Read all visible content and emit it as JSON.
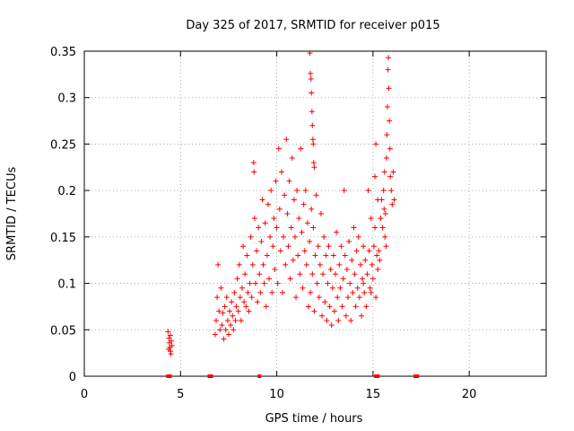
{
  "chart_data": {
    "type": "scatter",
    "title": "Day 325 of 2017, SRMTID for receiver p015",
    "xlabel": "GPS time / hours",
    "ylabel": "SRMTID / TECUs",
    "xlim": [
      0,
      24
    ],
    "ylim": [
      0,
      0.35
    ],
    "xticks": [
      0,
      5,
      10,
      15,
      20
    ],
    "xtick_labels": [
      "0",
      "5",
      "10",
      "15",
      "20"
    ],
    "yticks": [
      0,
      0.05,
      0.1,
      0.15,
      0.2,
      0.25,
      0.3,
      0.35
    ],
    "ytick_labels": [
      "0",
      "0.05",
      "0.1",
      "0.15",
      "0.2",
      "0.25",
      "0.3",
      "0.35"
    ],
    "grid": true,
    "marker": "+",
    "color": "#ff0000",
    "series": [
      {
        "name": "SRMTID",
        "points": [
          [
            4.35,
            0.048
          ],
          [
            4.4,
            0.041
          ],
          [
            4.42,
            0.036
          ],
          [
            4.45,
            0.031
          ],
          [
            4.48,
            0.027
          ],
          [
            4.5,
            0.024
          ],
          [
            4.52,
            0.038
          ],
          [
            4.55,
            0.033
          ],
          [
            4.38,
            0.029
          ],
          [
            4.47,
            0.044
          ],
          [
            6.8,
            0.045
          ],
          [
            6.85,
            0.06
          ],
          [
            6.9,
            0.085
          ],
          [
            6.95,
            0.12
          ],
          [
            7.0,
            0.07
          ],
          [
            7.05,
            0.05
          ],
          [
            7.1,
            0.095
          ],
          [
            7.15,
            0.055
          ],
          [
            7.2,
            0.068
          ],
          [
            7.25,
            0.04
          ],
          [
            7.3,
            0.075
          ],
          [
            7.35,
            0.05
          ],
          [
            7.4,
            0.085
          ],
          [
            7.45,
            0.06
          ],
          [
            7.5,
            0.045
          ],
          [
            7.55,
            0.07
          ],
          [
            7.6,
            0.055
          ],
          [
            7.65,
            0.08
          ],
          [
            7.7,
            0.065
          ],
          [
            7.75,
            0.05
          ],
          [
            7.8,
            0.09
          ],
          [
            7.85,
            0.06
          ],
          [
            7.9,
            0.075
          ],
          [
            7.95,
            0.105
          ],
          [
            8.0,
            0.07
          ],
          [
            8.05,
            0.12
          ],
          [
            8.1,
            0.085
          ],
          [
            8.15,
            0.06
          ],
          [
            8.2,
            0.095
          ],
          [
            8.25,
            0.14
          ],
          [
            8.3,
            0.08
          ],
          [
            8.35,
            0.11
          ],
          [
            8.4,
            0.075
          ],
          [
            8.45,
            0.13
          ],
          [
            8.5,
            0.09
          ],
          [
            8.55,
            0.07
          ],
          [
            8.6,
            0.1
          ],
          [
            8.65,
            0.15
          ],
          [
            8.7,
            0.085
          ],
          [
            8.75,
            0.12
          ],
          [
            8.8,
            0.23
          ],
          [
            8.82,
            0.22
          ],
          [
            8.85,
            0.17
          ],
          [
            8.9,
            0.1
          ],
          [
            8.95,
            0.135
          ],
          [
            9.0,
            0.08
          ],
          [
            9.05,
            0.16
          ],
          [
            9.1,
            0.11
          ],
          [
            9.15,
            0.09
          ],
          [
            9.2,
            0.145
          ],
          [
            9.25,
            0.19
          ],
          [
            9.3,
            0.12
          ],
          [
            9.35,
            0.1
          ],
          [
            9.4,
            0.165
          ],
          [
            9.45,
            0.075
          ],
          [
            9.5,
            0.13
          ],
          [
            9.55,
            0.185
          ],
          [
            9.6,
            0.105
          ],
          [
            9.65,
            0.15
          ],
          [
            9.7,
            0.2
          ],
          [
            9.75,
            0.09
          ],
          [
            9.8,
            0.14
          ],
          [
            9.85,
            0.17
          ],
          [
            9.9,
            0.115
          ],
          [
            9.95,
            0.21
          ],
          [
            10.0,
            0.16
          ],
          [
            10.05,
            0.1
          ],
          [
            10.1,
            0.245
          ],
          [
            10.15,
            0.18
          ],
          [
            10.2,
            0.135
          ],
          [
            10.25,
            0.22
          ],
          [
            10.3,
            0.09
          ],
          [
            10.35,
            0.15
          ],
          [
            10.4,
            0.195
          ],
          [
            10.45,
            0.12
          ],
          [
            10.5,
            0.255
          ],
          [
            10.55,
            0.175
          ],
          [
            10.6,
            0.14
          ],
          [
            10.65,
            0.21
          ],
          [
            10.7,
            0.105
          ],
          [
            10.75,
            0.16
          ],
          [
            10.8,
            0.235
          ],
          [
            10.85,
            0.125
          ],
          [
            10.9,
            0.19
          ],
          [
            10.95,
            0.15
          ],
          [
            11.0,
            0.085
          ],
          [
            11.05,
            0.2
          ],
          [
            11.1,
            0.13
          ],
          [
            11.15,
            0.17
          ],
          [
            11.2,
            0.11
          ],
          [
            11.25,
            0.245
          ],
          [
            11.3,
            0.155
          ],
          [
            11.35,
            0.095
          ],
          [
            11.4,
            0.185
          ],
          [
            11.45,
            0.135
          ],
          [
            11.5,
            0.2
          ],
          [
            11.55,
            0.12
          ],
          [
            11.6,
            0.165
          ],
          [
            11.65,
            0.075
          ],
          [
            11.7,
            0.145
          ],
          [
            11.72,
            0.348
          ],
          [
            11.75,
            0.326
          ],
          [
            11.78,
            0.32
          ],
          [
            11.8,
            0.305
          ],
          [
            11.83,
            0.285
          ],
          [
            11.85,
            0.27
          ],
          [
            11.88,
            0.255
          ],
          [
            11.9,
            0.25
          ],
          [
            11.92,
            0.23
          ],
          [
            11.95,
            0.225
          ],
          [
            11.75,
            0.09
          ],
          [
            11.8,
            0.18
          ],
          [
            11.85,
            0.11
          ],
          [
            11.9,
            0.16
          ],
          [
            11.95,
            0.07
          ],
          [
            12.0,
            0.13
          ],
          [
            12.05,
            0.195
          ],
          [
            12.1,
            0.1
          ],
          [
            12.15,
            0.14
          ],
          [
            12.2,
            0.085
          ],
          [
            12.25,
            0.12
          ],
          [
            12.3,
            0.175
          ],
          [
            12.35,
            0.065
          ],
          [
            12.4,
            0.11
          ],
          [
            12.45,
            0.15
          ],
          [
            12.5,
            0.08
          ],
          [
            12.55,
            0.13
          ],
          [
            12.6,
            0.06
          ],
          [
            12.65,
            0.1
          ],
          [
            12.7,
            0.14
          ],
          [
            12.75,
            0.075
          ],
          [
            12.8,
            0.115
          ],
          [
            12.85,
            0.055
          ],
          [
            12.9,
            0.095
          ],
          [
            12.95,
            0.13
          ],
          [
            13.0,
            0.07
          ],
          [
            13.05,
            0.11
          ],
          [
            13.1,
            0.155
          ],
          [
            13.15,
            0.085
          ],
          [
            13.2,
            0.06
          ],
          [
            13.25,
            0.12
          ],
          [
            13.3,
            0.095
          ],
          [
            13.35,
            0.14
          ],
          [
            13.4,
            0.075
          ],
          [
            13.45,
            0.105
          ],
          [
            13.5,
            0.2
          ],
          [
            13.55,
            0.13
          ],
          [
            13.6,
            0.065
          ],
          [
            13.65,
            0.115
          ],
          [
            13.7,
            0.085
          ],
          [
            13.75,
            0.145
          ],
          [
            13.8,
            0.1
          ],
          [
            13.85,
            0.06
          ],
          [
            13.9,
            0.125
          ],
          [
            13.95,
            0.09
          ],
          [
            14.0,
            0.16
          ],
          [
            14.05,
            0.11
          ],
          [
            14.1,
            0.075
          ],
          [
            14.15,
            0.135
          ],
          [
            14.2,
            0.095
          ],
          [
            14.25,
            0.15
          ],
          [
            14.3,
            0.085
          ],
          [
            14.35,
            0.12
          ],
          [
            14.4,
            0.065
          ],
          [
            14.45,
            0.105
          ],
          [
            14.5,
            0.14
          ],
          [
            14.55,
            0.09
          ],
          [
            14.6,
            0.125
          ],
          [
            14.65,
            0.075
          ],
          [
            14.7,
            0.11
          ],
          [
            14.75,
            0.2
          ],
          [
            14.8,
            0.135
          ],
          [
            14.85,
            0.095
          ],
          [
            14.9,
            0.17
          ],
          [
            14.95,
            0.12
          ],
          [
            15.0,
            0.105
          ],
          [
            15.05,
            0.14
          ],
          [
            15.1,
            0.16
          ],
          [
            15.15,
            0.085
          ],
          [
            15.2,
            0.13
          ],
          [
            15.25,
            0.115
          ],
          [
            15.3,
            0.135
          ],
          [
            15.35,
            0.125
          ],
          [
            15.4,
            0.17
          ],
          [
            15.45,
            0.19
          ],
          [
            15.5,
            0.16
          ],
          [
            15.55,
            0.2
          ],
          [
            15.58,
            0.18
          ],
          [
            15.6,
            0.22
          ],
          [
            15.65,
            0.175
          ],
          [
            15.7,
            0.235
          ],
          [
            15.72,
            0.26
          ],
          [
            15.75,
            0.29
          ],
          [
            15.78,
            0.33
          ],
          [
            15.8,
            0.343
          ],
          [
            15.82,
            0.31
          ],
          [
            15.85,
            0.275
          ],
          [
            15.88,
            0.245
          ],
          [
            15.9,
            0.215
          ],
          [
            15.95,
            0.2
          ],
          [
            16.0,
            0.185
          ],
          [
            16.05,
            0.22
          ],
          [
            16.1,
            0.19
          ],
          [
            15.62,
            0.15
          ],
          [
            15.68,
            0.14
          ],
          [
            15.15,
            0.25
          ],
          [
            15.1,
            0.215
          ],
          [
            15.25,
            0.19
          ],
          [
            14.9,
            0.09
          ],
          [
            14.5,
            0.1
          ]
        ]
      }
    ],
    "baseline_markers": [
      4.35,
      4.45,
      6.5,
      6.6,
      9.1,
      15.15,
      15.25,
      17.2,
      17.3
    ]
  }
}
